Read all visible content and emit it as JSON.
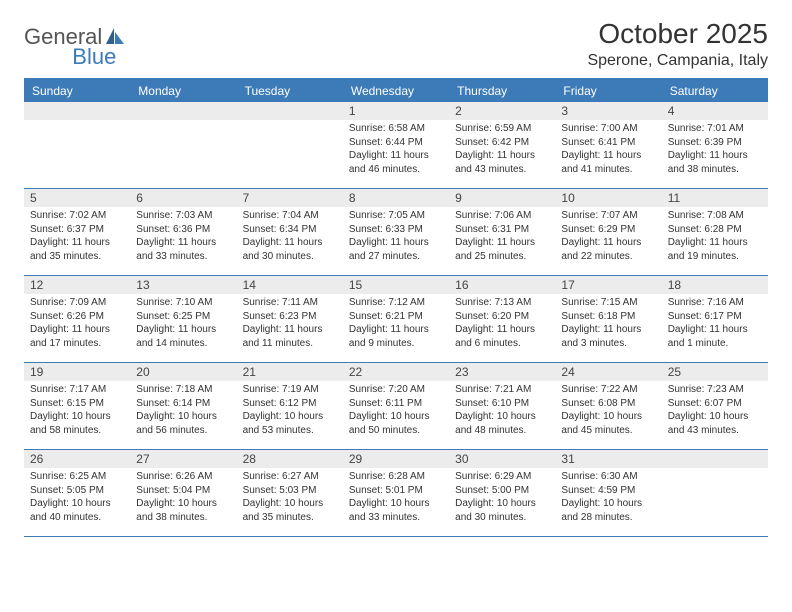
{
  "logo": {
    "part1": "General",
    "part2": "Blue"
  },
  "title": "October 2025",
  "location": "Sperone, Campania, Italy",
  "colors": {
    "accent": "#3d7bb8",
    "header_bg": "#3d7bb8",
    "header_text": "#ffffff",
    "daynum_bg": "#ececec",
    "body_text": "#333333",
    "border": "#3d7bb8"
  },
  "day_headers": [
    "Sunday",
    "Monday",
    "Tuesday",
    "Wednesday",
    "Thursday",
    "Friday",
    "Saturday"
  ],
  "weeks": [
    [
      {
        "n": "",
        "sunrise": "",
        "sunset": "",
        "day_h": "",
        "day_m": ""
      },
      {
        "n": "",
        "sunrise": "",
        "sunset": "",
        "day_h": "",
        "day_m": ""
      },
      {
        "n": "",
        "sunrise": "",
        "sunset": "",
        "day_h": "",
        "day_m": ""
      },
      {
        "n": "1",
        "sunrise": "6:58 AM",
        "sunset": "6:44 PM",
        "day_h": "11",
        "day_m": "46"
      },
      {
        "n": "2",
        "sunrise": "6:59 AM",
        "sunset": "6:42 PM",
        "day_h": "11",
        "day_m": "43"
      },
      {
        "n": "3",
        "sunrise": "7:00 AM",
        "sunset": "6:41 PM",
        "day_h": "11",
        "day_m": "41"
      },
      {
        "n": "4",
        "sunrise": "7:01 AM",
        "sunset": "6:39 PM",
        "day_h": "11",
        "day_m": "38"
      }
    ],
    [
      {
        "n": "5",
        "sunrise": "7:02 AM",
        "sunset": "6:37 PM",
        "day_h": "11",
        "day_m": "35"
      },
      {
        "n": "6",
        "sunrise": "7:03 AM",
        "sunset": "6:36 PM",
        "day_h": "11",
        "day_m": "33"
      },
      {
        "n": "7",
        "sunrise": "7:04 AM",
        "sunset": "6:34 PM",
        "day_h": "11",
        "day_m": "30"
      },
      {
        "n": "8",
        "sunrise": "7:05 AM",
        "sunset": "6:33 PM",
        "day_h": "11",
        "day_m": "27"
      },
      {
        "n": "9",
        "sunrise": "7:06 AM",
        "sunset": "6:31 PM",
        "day_h": "11",
        "day_m": "25"
      },
      {
        "n": "10",
        "sunrise": "7:07 AM",
        "sunset": "6:29 PM",
        "day_h": "11",
        "day_m": "22"
      },
      {
        "n": "11",
        "sunrise": "7:08 AM",
        "sunset": "6:28 PM",
        "day_h": "11",
        "day_m": "19"
      }
    ],
    [
      {
        "n": "12",
        "sunrise": "7:09 AM",
        "sunset": "6:26 PM",
        "day_h": "11",
        "day_m": "17"
      },
      {
        "n": "13",
        "sunrise": "7:10 AM",
        "sunset": "6:25 PM",
        "day_h": "11",
        "day_m": "14"
      },
      {
        "n": "14",
        "sunrise": "7:11 AM",
        "sunset": "6:23 PM",
        "day_h": "11",
        "day_m": "11"
      },
      {
        "n": "15",
        "sunrise": "7:12 AM",
        "sunset": "6:21 PM",
        "day_h": "11",
        "day_m": "9"
      },
      {
        "n": "16",
        "sunrise": "7:13 AM",
        "sunset": "6:20 PM",
        "day_h": "11",
        "day_m": "6"
      },
      {
        "n": "17",
        "sunrise": "7:15 AM",
        "sunset": "6:18 PM",
        "day_h": "11",
        "day_m": "3"
      },
      {
        "n": "18",
        "sunrise": "7:16 AM",
        "sunset": "6:17 PM",
        "day_h": "11",
        "day_m": "1"
      }
    ],
    [
      {
        "n": "19",
        "sunrise": "7:17 AM",
        "sunset": "6:15 PM",
        "day_h": "10",
        "day_m": "58"
      },
      {
        "n": "20",
        "sunrise": "7:18 AM",
        "sunset": "6:14 PM",
        "day_h": "10",
        "day_m": "56"
      },
      {
        "n": "21",
        "sunrise": "7:19 AM",
        "sunset": "6:12 PM",
        "day_h": "10",
        "day_m": "53"
      },
      {
        "n": "22",
        "sunrise": "7:20 AM",
        "sunset": "6:11 PM",
        "day_h": "10",
        "day_m": "50"
      },
      {
        "n": "23",
        "sunrise": "7:21 AM",
        "sunset": "6:10 PM",
        "day_h": "10",
        "day_m": "48"
      },
      {
        "n": "24",
        "sunrise": "7:22 AM",
        "sunset": "6:08 PM",
        "day_h": "10",
        "day_m": "45"
      },
      {
        "n": "25",
        "sunrise": "7:23 AM",
        "sunset": "6:07 PM",
        "day_h": "10",
        "day_m": "43"
      }
    ],
    [
      {
        "n": "26",
        "sunrise": "6:25 AM",
        "sunset": "5:05 PM",
        "day_h": "10",
        "day_m": "40"
      },
      {
        "n": "27",
        "sunrise": "6:26 AM",
        "sunset": "5:04 PM",
        "day_h": "10",
        "day_m": "38"
      },
      {
        "n": "28",
        "sunrise": "6:27 AM",
        "sunset": "5:03 PM",
        "day_h": "10",
        "day_m": "35"
      },
      {
        "n": "29",
        "sunrise": "6:28 AM",
        "sunset": "5:01 PM",
        "day_h": "10",
        "day_m": "33"
      },
      {
        "n": "30",
        "sunrise": "6:29 AM",
        "sunset": "5:00 PM",
        "day_h": "10",
        "day_m": "30"
      },
      {
        "n": "31",
        "sunrise": "6:30 AM",
        "sunset": "4:59 PM",
        "day_h": "10",
        "day_m": "28"
      },
      {
        "n": "",
        "sunrise": "",
        "sunset": "",
        "day_h": "",
        "day_m": ""
      }
    ]
  ],
  "labels": {
    "sunrise": "Sunrise:",
    "sunset": "Sunset:",
    "daylight": "Daylight:",
    "hours": "hours",
    "and": "and",
    "minute": "minute.",
    "minutes": "minutes."
  },
  "typography": {
    "title_fontsize": 28,
    "location_fontsize": 16,
    "header_fontsize": 12,
    "daynum_fontsize": 12,
    "body_fontsize": 10
  }
}
